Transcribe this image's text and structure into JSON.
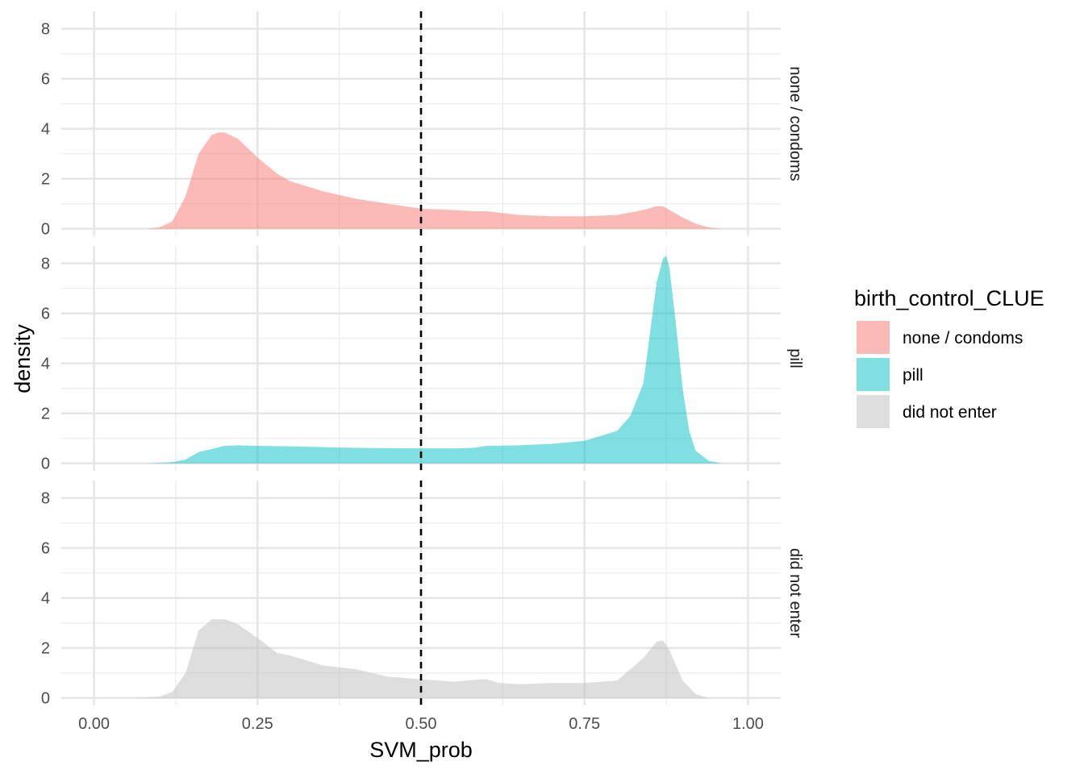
{
  "chart_data": {
    "type": "area",
    "xlabel": "SVM_prob",
    "ylabel": "density",
    "xlim": [
      -0.05,
      1.05
    ],
    "ylim": [
      -0.3,
      8.7
    ],
    "x_ticks": [
      0.0,
      0.25,
      0.5,
      0.75,
      1.0
    ],
    "x_tick_labels": [
      "0.00",
      "0.25",
      "0.50",
      "0.75",
      "1.00"
    ],
    "y_ticks": [
      0,
      2,
      4,
      6,
      8
    ],
    "y_tick_labels": [
      "0",
      "2",
      "4",
      "6",
      "8"
    ],
    "reference_line": {
      "x": 0.5,
      "style": "dashed"
    },
    "grid": true,
    "legend": {
      "title": "birth_control_CLUE",
      "position": "right",
      "entries": [
        "none / condoms",
        "pill",
        "did not enter"
      ]
    },
    "facets": [
      {
        "name": "none / condoms",
        "color": "#F8766D",
        "x": [
          0.08,
          0.1,
          0.12,
          0.14,
          0.16,
          0.18,
          0.19,
          0.2,
          0.22,
          0.25,
          0.28,
          0.3,
          0.35,
          0.4,
          0.45,
          0.5,
          0.55,
          0.58,
          0.6,
          0.65,
          0.7,
          0.75,
          0.8,
          0.84,
          0.86,
          0.87,
          0.88,
          0.9,
          0.92,
          0.94,
          0.96
        ],
        "values": [
          0,
          0.05,
          0.3,
          1.3,
          3.0,
          3.75,
          3.85,
          3.85,
          3.6,
          2.85,
          2.2,
          1.9,
          1.5,
          1.2,
          1.0,
          0.8,
          0.75,
          0.7,
          0.7,
          0.55,
          0.5,
          0.5,
          0.55,
          0.75,
          0.9,
          0.9,
          0.75,
          0.45,
          0.2,
          0.05,
          0
        ]
      },
      {
        "name": "pill",
        "color": "#00BFC4",
        "x": [
          0.08,
          0.1,
          0.12,
          0.14,
          0.16,
          0.2,
          0.22,
          0.25,
          0.3,
          0.4,
          0.5,
          0.55,
          0.58,
          0.6,
          0.65,
          0.7,
          0.75,
          0.8,
          0.82,
          0.84,
          0.85,
          0.86,
          0.87,
          0.875,
          0.88,
          0.89,
          0.9,
          0.91,
          0.92,
          0.94,
          0.96
        ],
        "values": [
          0,
          0.02,
          0.05,
          0.15,
          0.45,
          0.7,
          0.72,
          0.7,
          0.68,
          0.62,
          0.6,
          0.6,
          0.62,
          0.7,
          0.72,
          0.78,
          0.9,
          1.3,
          1.9,
          3.2,
          5.2,
          7.2,
          8.2,
          8.3,
          7.8,
          5.5,
          3.0,
          1.3,
          0.5,
          0.1,
          0
        ]
      },
      {
        "name": "did not enter",
        "color": "#BEBEBE",
        "x": [
          0.06,
          0.1,
          0.12,
          0.14,
          0.16,
          0.18,
          0.2,
          0.22,
          0.25,
          0.28,
          0.3,
          0.35,
          0.4,
          0.45,
          0.5,
          0.55,
          0.58,
          0.6,
          0.62,
          0.65,
          0.7,
          0.75,
          0.8,
          0.84,
          0.86,
          0.87,
          0.88,
          0.9,
          0.92,
          0.94
        ],
        "values": [
          0,
          0.05,
          0.25,
          1.0,
          2.7,
          3.15,
          3.15,
          2.95,
          2.4,
          1.8,
          1.7,
          1.3,
          1.15,
          0.85,
          0.75,
          0.65,
          0.72,
          0.75,
          0.6,
          0.55,
          0.6,
          0.6,
          0.7,
          1.6,
          2.25,
          2.3,
          1.9,
          0.7,
          0.15,
          0
        ]
      }
    ]
  }
}
